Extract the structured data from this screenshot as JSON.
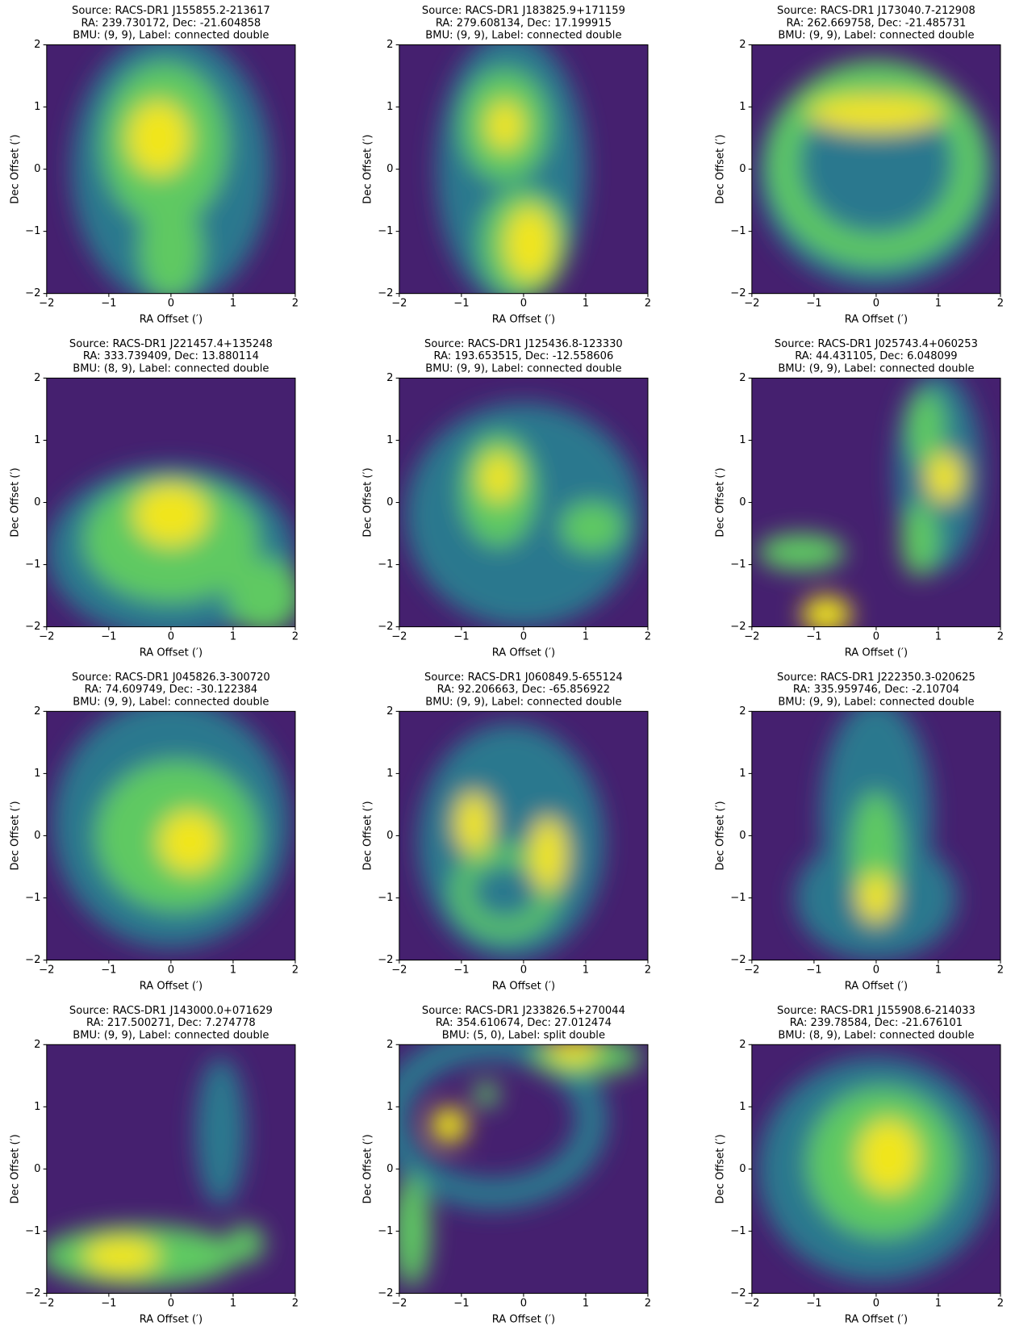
{
  "chart_data": [
    {
      "type": "image",
      "title": [
        "Source: RACS-DR1 J155855.2-213617",
        "RA: 239.730172, Dec: -21.604858",
        "BMU: (9, 9), Label: connected double"
      ],
      "xlabel": "RA Offset (′)",
      "ylabel": "Dec Offset (′)",
      "xlim": [
        -2,
        2
      ],
      "ylim": [
        -2,
        2
      ],
      "xticks": [
        {
          "value": -2,
          "label": "−2"
        },
        {
          "value": -1,
          "label": "−1"
        },
        0,
        1,
        2
      ],
      "yticks": [
        {
          "value": -2,
          "label": "−2"
        },
        {
          "value": -1,
          "label": "−1"
        },
        0,
        1,
        2
      ],
      "colormap": "viridis"
    },
    {
      "type": "image",
      "title": [
        "Source: RACS-DR1 J183825.9+171159",
        "RA: 279.608134, Dec: 17.199915",
        "BMU: (9, 9), Label: connected double"
      ],
      "xlabel": "RA Offset (′)",
      "ylabel": "Dec Offset (′)",
      "xlim": [
        -2,
        2
      ],
      "ylim": [
        -2,
        2
      ],
      "xticks": [
        {
          "value": -2,
          "label": "−2"
        },
        {
          "value": -1,
          "label": "−1"
        },
        0,
        1,
        2
      ],
      "yticks": [
        {
          "value": -2,
          "label": "−2"
        },
        {
          "value": -1,
          "label": "−1"
        },
        0,
        1,
        2
      ],
      "colormap": "viridis"
    },
    {
      "type": "image",
      "title": [
        "Source: RACS-DR1 J173040.7-212908",
        "RA: 262.669758, Dec: -21.485731",
        "BMU: (9, 9), Label: connected double"
      ],
      "xlabel": "RA Offset (′)",
      "ylabel": "Dec Offset (′)",
      "xlim": [
        -2,
        2
      ],
      "ylim": [
        -2,
        2
      ],
      "xticks": [
        {
          "value": -2,
          "label": "−2"
        },
        {
          "value": -1,
          "label": "−1"
        },
        0,
        1,
        2
      ],
      "yticks": [
        {
          "value": -2,
          "label": "−2"
        },
        {
          "value": -1,
          "label": "−1"
        },
        0,
        1,
        2
      ],
      "colormap": "viridis"
    },
    {
      "type": "image",
      "title": [
        "Source: RACS-DR1 J221457.4+135248",
        "RA: 333.739409, Dec: 13.880114",
        "BMU: (8, 9), Label: connected double"
      ],
      "xlabel": "RA Offset (′)",
      "ylabel": "Dec Offset (′)",
      "xlim": [
        -2,
        2
      ],
      "ylim": [
        -2,
        2
      ],
      "xticks": [
        {
          "value": -2,
          "label": "−2"
        },
        {
          "value": -1,
          "label": "−1"
        },
        0,
        1,
        2
      ],
      "yticks": [
        {
          "value": -2,
          "label": "−2"
        },
        {
          "value": -1,
          "label": "−1"
        },
        0,
        1,
        2
      ],
      "colormap": "viridis"
    },
    {
      "type": "image",
      "title": [
        "Source: RACS-DR1 J125436.8-123330",
        "RA: 193.653515, Dec: -12.558606",
        "BMU: (9, 9), Label: connected double"
      ],
      "xlabel": "RA Offset (′)",
      "ylabel": "Dec Offset (′)",
      "xlim": [
        -2,
        2
      ],
      "ylim": [
        -2,
        2
      ],
      "xticks": [
        {
          "value": -2,
          "label": "−2"
        },
        {
          "value": -1,
          "label": "−1"
        },
        0,
        1,
        2
      ],
      "yticks": [
        {
          "value": -2,
          "label": "−2"
        },
        {
          "value": -1,
          "label": "−1"
        },
        0,
        1,
        2
      ],
      "colormap": "viridis"
    },
    {
      "type": "image",
      "title": [
        "Source: RACS-DR1 J025743.4+060253",
        "RA: 44.431105, Dec: 6.048099",
        "BMU: (9, 9), Label: connected double"
      ],
      "xlabel": "RA Offset (′)",
      "ylabel": "Dec Offset (′)",
      "xlim": [
        -2,
        2
      ],
      "ylim": [
        -2,
        2
      ],
      "xticks": [
        {
          "value": -2,
          "label": "−2"
        },
        {
          "value": -1,
          "label": "−1"
        },
        0,
        1,
        2
      ],
      "yticks": [
        {
          "value": -2,
          "label": "−2"
        },
        {
          "value": -1,
          "label": "−1"
        },
        0,
        1,
        2
      ],
      "colormap": "viridis"
    },
    {
      "type": "image",
      "title": [
        "Source: RACS-DR1 J045826.3-300720",
        "RA: 74.609749, Dec: -30.122384",
        "BMU: (9, 9), Label: connected double"
      ],
      "xlabel": "RA Offset (′)",
      "ylabel": "Dec Offset (′)",
      "xlim": [
        -2,
        2
      ],
      "ylim": [
        -2,
        2
      ],
      "xticks": [
        {
          "value": -2,
          "label": "−2"
        },
        {
          "value": -1,
          "label": "−1"
        },
        0,
        1,
        2
      ],
      "yticks": [
        {
          "value": -2,
          "label": "−2"
        },
        {
          "value": -1,
          "label": "−1"
        },
        0,
        1,
        2
      ],
      "colormap": "viridis"
    },
    {
      "type": "image",
      "title": [
        "Source: RACS-DR1 J060849.5-655124",
        "RA: 92.206663, Dec: -65.856922",
        "BMU: (9, 9), Label: connected double"
      ],
      "xlabel": "RA Offset (′)",
      "ylabel": "Dec Offset (′)",
      "xlim": [
        -2,
        2
      ],
      "ylim": [
        -2,
        2
      ],
      "xticks": [
        {
          "value": -2,
          "label": "−2"
        },
        {
          "value": -1,
          "label": "−1"
        },
        0,
        1,
        2
      ],
      "yticks": [
        {
          "value": -2,
          "label": "−2"
        },
        {
          "value": -1,
          "label": "−1"
        },
        0,
        1,
        2
      ],
      "colormap": "viridis"
    },
    {
      "type": "image",
      "title": [
        "Source: RACS-DR1 J222350.3-020625",
        "RA: 335.959746, Dec: -2.10704",
        "BMU: (9, 9), Label: connected double"
      ],
      "xlabel": "RA Offset (′)",
      "ylabel": "Dec Offset (′)",
      "xlim": [
        -2,
        2
      ],
      "ylim": [
        -2,
        2
      ],
      "xticks": [
        {
          "value": -2,
          "label": "−2"
        },
        {
          "value": -1,
          "label": "−1"
        },
        0,
        1,
        2
      ],
      "yticks": [
        {
          "value": -2,
          "label": "−2"
        },
        {
          "value": -1,
          "label": "−1"
        },
        0,
        1,
        2
      ],
      "colormap": "viridis"
    },
    {
      "type": "image",
      "title": [
        "Source: RACS-DR1 J143000.0+071629",
        "RA: 217.500271, Dec: 7.274778",
        "BMU: (9, 9), Label: connected double"
      ],
      "xlabel": "RA Offset (′)",
      "ylabel": "Dec Offset (′)",
      "xlim": [
        -2,
        2
      ],
      "ylim": [
        -2,
        2
      ],
      "xticks": [
        {
          "value": -2,
          "label": "−2"
        },
        {
          "value": -1,
          "label": "−1"
        },
        0,
        1,
        2
      ],
      "yticks": [
        {
          "value": -2,
          "label": "−2"
        },
        {
          "value": -1,
          "label": "−1"
        },
        0,
        1,
        2
      ],
      "colormap": "viridis"
    },
    {
      "type": "image",
      "title": [
        "Source: RACS-DR1 J233826.5+270044",
        "RA: 354.610674, Dec: 27.012474",
        "BMU: (5, 0), Label: split double"
      ],
      "xlabel": "RA Offset (′)",
      "ylabel": "Dec Offset (′)",
      "xlim": [
        -2,
        2
      ],
      "ylim": [
        -2,
        2
      ],
      "xticks": [
        {
          "value": -2,
          "label": "−2"
        },
        {
          "value": -1,
          "label": "−1"
        },
        0,
        1,
        2
      ],
      "yticks": [
        {
          "value": -2,
          "label": "−2"
        },
        {
          "value": -1,
          "label": "−1"
        },
        0,
        1,
        2
      ],
      "colormap": "viridis"
    },
    {
      "type": "image",
      "title": [
        "Source: RACS-DR1 J155908.6-214033",
        "RA: 239.78584, Dec: -21.676101",
        "BMU: (8, 9), Label: connected double"
      ],
      "xlabel": "RA Offset (′)",
      "ylabel": "Dec Offset (′)",
      "xlim": [
        -2,
        2
      ],
      "ylim": [
        -2,
        2
      ],
      "xticks": [
        {
          "value": -2,
          "label": "−2"
        },
        {
          "value": -1,
          "label": "−1"
        },
        0,
        1,
        2
      ],
      "yticks": [
        {
          "value": -2,
          "label": "−2"
        },
        {
          "value": -1,
          "label": "−1"
        },
        0,
        1,
        2
      ],
      "colormap": "viridis"
    }
  ]
}
